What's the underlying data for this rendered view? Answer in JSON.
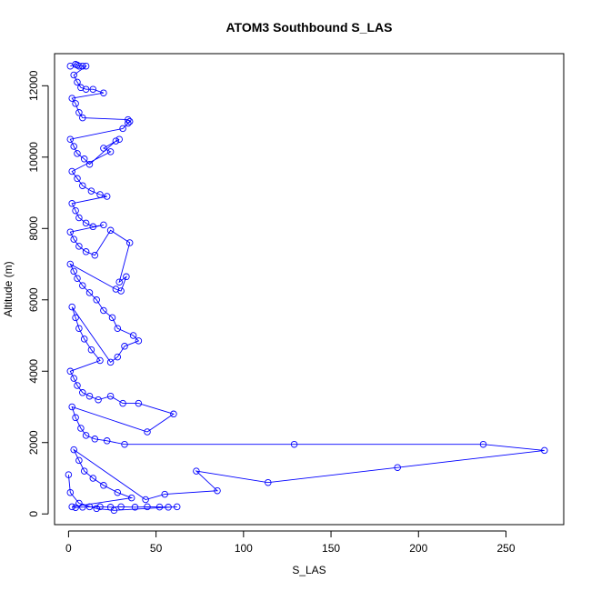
{
  "chart_data": {
    "type": "line",
    "title": "ATOM3 Southbound S_LAS",
    "xlabel": "S_LAS",
    "ylabel": "Altitude (m)",
    "xlim": [
      -8,
      283
    ],
    "ylim": [
      -300,
      12900
    ],
    "x_ticks": [
      0,
      50,
      100,
      150,
      200,
      250
    ],
    "x_tick_labels": [
      "0",
      "50",
      "100",
      "150",
      "200",
      "250"
    ],
    "y_ticks": [
      0,
      2000,
      4000,
      6000,
      8000,
      10000,
      12000
    ],
    "y_tick_labels": [
      "0",
      "2000",
      "4000",
      "6000",
      "8000",
      "10000",
      "12000"
    ],
    "grid": false,
    "legend": "none",
    "series": [
      {
        "color": "#0000ff",
        "marker": "open-circle",
        "points": [
          [
            1,
            12550
          ],
          [
            4,
            12600
          ],
          [
            5,
            12580
          ],
          [
            6,
            12550
          ],
          [
            8,
            12550
          ],
          [
            10,
            12550
          ],
          [
            3,
            12300
          ],
          [
            5,
            12100
          ],
          [
            7,
            11950
          ],
          [
            10,
            11900
          ],
          [
            14,
            11900
          ],
          [
            20,
            11800
          ],
          [
            2,
            11650
          ],
          [
            4,
            11500
          ],
          [
            6,
            11250
          ],
          [
            8,
            11100
          ],
          [
            34,
            11050
          ],
          [
            35,
            11000
          ],
          [
            34,
            10950
          ],
          [
            31,
            10800
          ],
          [
            1,
            10500
          ],
          [
            3,
            10300
          ],
          [
            5,
            10100
          ],
          [
            9,
            9950
          ],
          [
            12,
            9800
          ],
          [
            27,
            10450
          ],
          [
            29,
            10500
          ],
          [
            20,
            10250
          ],
          [
            24,
            10150
          ],
          [
            2,
            9600
          ],
          [
            5,
            9400
          ],
          [
            8,
            9200
          ],
          [
            13,
            9050
          ],
          [
            18,
            8950
          ],
          [
            22,
            8900
          ],
          [
            2,
            8700
          ],
          [
            4,
            8500
          ],
          [
            6,
            8300
          ],
          [
            10,
            8150
          ],
          [
            14,
            8050
          ],
          [
            20,
            8100
          ],
          [
            1,
            7900
          ],
          [
            3,
            7700
          ],
          [
            6,
            7500
          ],
          [
            10,
            7350
          ],
          [
            15,
            7250
          ],
          [
            24,
            7950
          ],
          [
            35,
            7600
          ],
          [
            29,
            6500
          ],
          [
            33,
            6650
          ],
          [
            30,
            6250
          ],
          [
            27,
            6300
          ],
          [
            1,
            7000
          ],
          [
            3,
            6800
          ],
          [
            5,
            6600
          ],
          [
            8,
            6400
          ],
          [
            12,
            6200
          ],
          [
            16,
            6000
          ],
          [
            20,
            5700
          ],
          [
            25,
            5500
          ],
          [
            28,
            5200
          ],
          [
            37,
            5000
          ],
          [
            40,
            4850
          ],
          [
            32,
            4700
          ],
          [
            28,
            4400
          ],
          [
            24,
            4250
          ],
          [
            2,
            5800
          ],
          [
            4,
            5500
          ],
          [
            6,
            5200
          ],
          [
            9,
            4900
          ],
          [
            13,
            4600
          ],
          [
            18,
            4300
          ],
          [
            1,
            4000
          ],
          [
            3,
            3800
          ],
          [
            5,
            3600
          ],
          [
            8,
            3400
          ],
          [
            12,
            3300
          ],
          [
            17,
            3200
          ],
          [
            24,
            3300
          ],
          [
            31,
            3100
          ],
          [
            40,
            3100
          ],
          [
            60,
            2800
          ],
          [
            45,
            2300
          ],
          [
            2,
            3000
          ],
          [
            4,
            2700
          ],
          [
            7,
            2400
          ],
          [
            10,
            2200
          ],
          [
            15,
            2100
          ],
          [
            22,
            2050
          ],
          [
            32,
            1950
          ],
          [
            129,
            1950
          ],
          [
            237,
            1950
          ],
          [
            272,
            1780
          ],
          [
            188,
            1300
          ],
          [
            114,
            880
          ],
          [
            73,
            1200
          ],
          [
            85,
            650
          ],
          [
            55,
            550
          ],
          [
            44,
            400
          ],
          [
            3,
            1800
          ],
          [
            6,
            1500
          ],
          [
            9,
            1200
          ],
          [
            14,
            1000
          ],
          [
            20,
            800
          ],
          [
            28,
            600
          ],
          [
            36,
            450
          ],
          [
            2,
            200
          ],
          [
            4,
            180
          ],
          [
            8,
            190
          ],
          [
            12,
            200
          ],
          [
            18,
            200
          ],
          [
            24,
            190
          ],
          [
            30,
            200
          ],
          [
            38,
            190
          ],
          [
            45,
            200
          ],
          [
            52,
            195
          ],
          [
            57,
            190
          ],
          [
            62,
            200
          ],
          [
            26,
            100
          ],
          [
            16,
            150
          ],
          [
            6,
            300
          ],
          [
            1,
            600
          ],
          [
            0,
            1100
          ]
        ]
      }
    ]
  }
}
